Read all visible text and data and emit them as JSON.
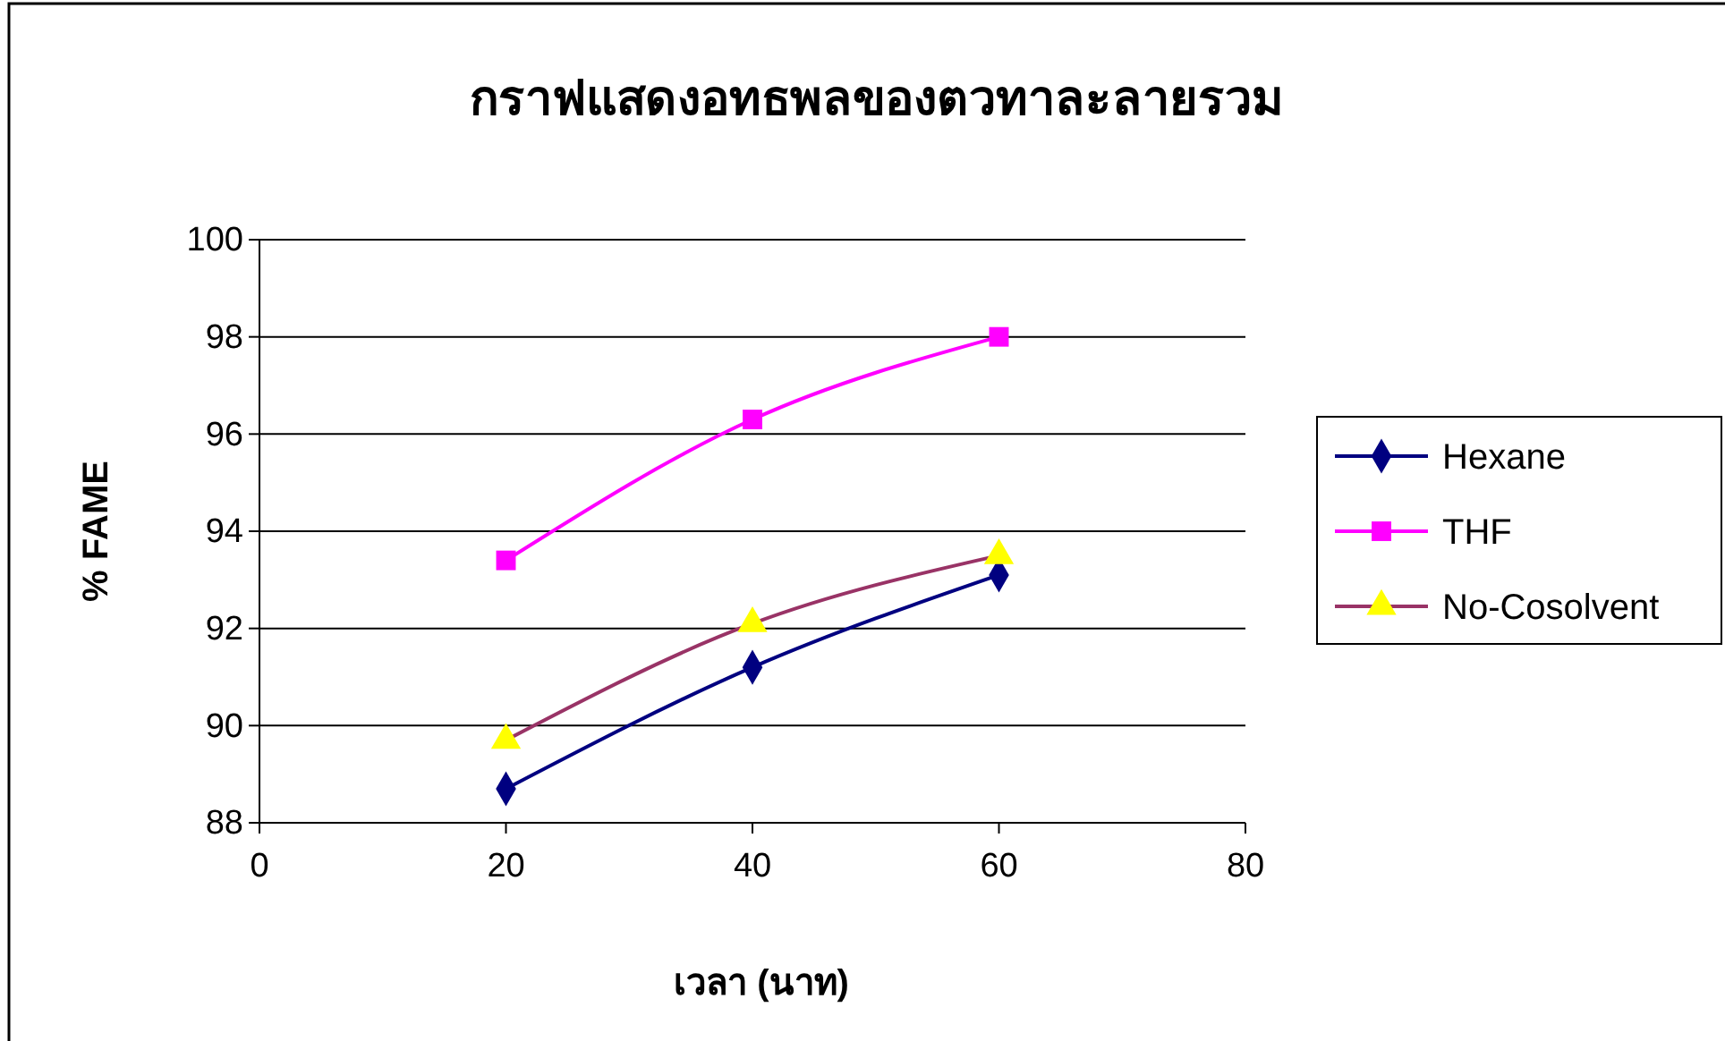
{
  "chart_data": {
    "type": "line",
    "title": "กราฟแสดงอทธพลของตวทาละลายรวม",
    "xlabel": "เวลา (นาท)",
    "ylabel": "% FAME",
    "x": [
      20,
      40,
      60
    ],
    "xlim": [
      0,
      80
    ],
    "xticks": [
      0,
      20,
      40,
      60,
      80
    ],
    "ylim": [
      88,
      100
    ],
    "yticks": [
      88,
      90,
      92,
      94,
      96,
      98,
      100
    ],
    "grid": "y",
    "legend": "right",
    "line_style": "solid",
    "series": [
      {
        "name": "Hexane",
        "color": "#000080",
        "marker": "diamond",
        "values": [
          88.7,
          91.2,
          93.1
        ]
      },
      {
        "name": "THF",
        "color": "#ff00ff",
        "marker": "square",
        "values": [
          93.4,
          96.3,
          98.0
        ]
      },
      {
        "name": "No-Cosolvent",
        "color": "#993366",
        "colors": [
          "#ffff00",
          "#ffff00",
          "#ffff00"
        ],
        "marker": "triangle",
        "values": [
          89.7,
          92.1,
          93.5
        ]
      }
    ]
  }
}
